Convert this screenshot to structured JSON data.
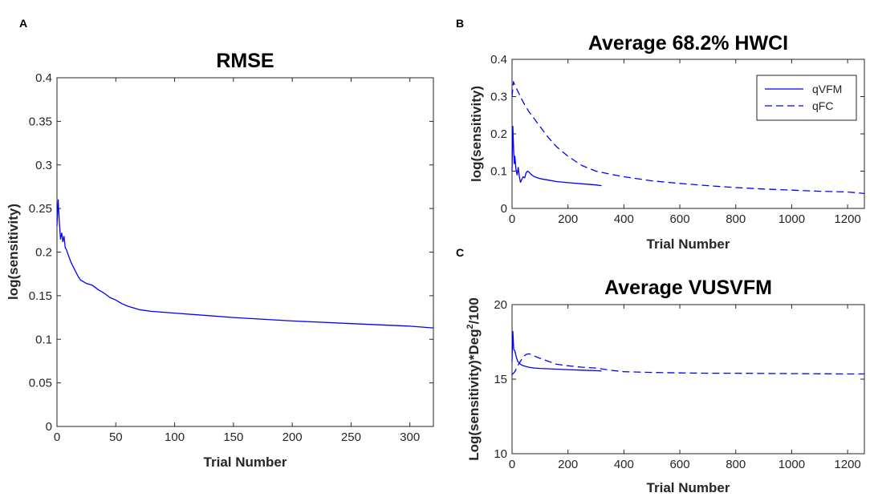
{
  "colors": {
    "series": "#0000ff",
    "axis": "#262626",
    "background": "#ffffff"
  },
  "chart_data": [
    {
      "panel": "A",
      "type": "line",
      "title": "RMSE",
      "xlabel": "Trial Number",
      "ylabel": "log(sensitivity)",
      "xlim": [
        0,
        320
      ],
      "ylim": [
        0,
        0.4
      ],
      "xticks": [
        0,
        50,
        100,
        150,
        200,
        250,
        300
      ],
      "yticks": [
        0,
        0.05,
        0.1,
        0.15,
        0.2,
        0.25,
        0.3,
        0.35,
        0.4
      ],
      "ytick_labels": [
        "0",
        "0.05",
        "0.1",
        "0.15",
        "0.2",
        "0.25",
        "0.3",
        "0.35",
        "0.4"
      ],
      "series": [
        {
          "name": "RMSE",
          "style": "solid",
          "x": [
            0,
            1,
            2,
            3,
            4,
            5,
            6,
            7,
            8,
            10,
            12,
            15,
            18,
            20,
            25,
            30,
            35,
            40,
            45,
            50,
            55,
            60,
            70,
            80,
            100,
            120,
            150,
            200,
            250,
            300,
            320
          ],
          "y": [
            0.23,
            0.26,
            0.235,
            0.215,
            0.222,
            0.212,
            0.218,
            0.205,
            0.203,
            0.195,
            0.188,
            0.18,
            0.172,
            0.168,
            0.164,
            0.162,
            0.157,
            0.153,
            0.148,
            0.145,
            0.141,
            0.138,
            0.134,
            0.132,
            0.13,
            0.128,
            0.125,
            0.121,
            0.118,
            0.115,
            0.113
          ]
        }
      ]
    },
    {
      "panel": "B",
      "type": "line",
      "title": "Average 68.2% HWCI",
      "xlabel": "Trial Number",
      "ylabel": "log(sensitivity)",
      "xlim": [
        0,
        1260
      ],
      "ylim": [
        0,
        0.4
      ],
      "xticks": [
        0,
        200,
        400,
        600,
        800,
        1000,
        1200
      ],
      "yticks": [
        0,
        0.1,
        0.2,
        0.3,
        0.4
      ],
      "ytick_labels": [
        "0",
        "0.1",
        "0.2",
        "0.3",
        "0.4"
      ],
      "legend": {
        "position": "top-right",
        "entries": [
          "qVFM",
          "qFC"
        ]
      },
      "series": [
        {
          "name": "qVFM",
          "style": "solid",
          "x": [
            0,
            3,
            6,
            8,
            10,
            14,
            18,
            22,
            26,
            30,
            35,
            40,
            45,
            50,
            55,
            60,
            65,
            70,
            80,
            100,
            130,
            160,
            200,
            250,
            300,
            320
          ],
          "y": [
            0.1,
            0.22,
            0.15,
            0.12,
            0.14,
            0.105,
            0.09,
            0.11,
            0.085,
            0.07,
            0.078,
            0.085,
            0.082,
            0.095,
            0.1,
            0.098,
            0.094,
            0.09,
            0.085,
            0.08,
            0.076,
            0.072,
            0.069,
            0.066,
            0.063,
            0.061
          ]
        },
        {
          "name": "qFC",
          "style": "dashed",
          "x": [
            0,
            5,
            10,
            20,
            30,
            40,
            60,
            80,
            100,
            130,
            160,
            200,
            250,
            300,
            350,
            400,
            500,
            600,
            700,
            800,
            900,
            1000,
            1100,
            1200,
            1260
          ],
          "y": [
            0.3,
            0.34,
            0.33,
            0.315,
            0.3,
            0.285,
            0.26,
            0.24,
            0.22,
            0.19,
            0.165,
            0.14,
            0.115,
            0.1,
            0.092,
            0.085,
            0.074,
            0.067,
            0.061,
            0.056,
            0.052,
            0.049,
            0.046,
            0.044,
            0.04
          ]
        }
      ]
    },
    {
      "panel": "C",
      "type": "line",
      "title": "Average VUSVFM",
      "xlabel": "Trial Number",
      "ylabel_main": "Log(sensitivity)*Deg",
      "ylabel_sup": "2",
      "ylabel_end": "/100",
      "xlim": [
        0,
        1260
      ],
      "ylim": [
        10,
        20
      ],
      "xticks": [
        0,
        200,
        400,
        600,
        800,
        1000,
        1200
      ],
      "yticks": [
        10,
        15,
        20
      ],
      "ytick_labels": [
        "10",
        "15",
        "20"
      ],
      "series": [
        {
          "name": "qVFM",
          "style": "solid",
          "x": [
            0,
            3,
            6,
            10,
            15,
            20,
            30,
            40,
            60,
            80,
            100,
            150,
            200,
            250,
            300,
            320
          ],
          "y": [
            16.2,
            18.2,
            17.0,
            16.9,
            16.5,
            16.2,
            16.0,
            15.9,
            15.8,
            15.75,
            15.72,
            15.68,
            15.64,
            15.6,
            15.57,
            15.55
          ]
        },
        {
          "name": "qFC",
          "style": "dashed",
          "x": [
            0,
            10,
            20,
            30,
            40,
            50,
            60,
            70,
            80,
            100,
            130,
            160,
            200,
            250,
            300,
            350,
            400,
            500,
            600,
            700,
            800,
            900,
            1000,
            1100,
            1200,
            1260
          ],
          "y": [
            15.3,
            15.5,
            15.9,
            16.2,
            16.5,
            16.65,
            16.7,
            16.65,
            16.55,
            16.4,
            16.2,
            16.0,
            15.9,
            15.8,
            15.75,
            15.6,
            15.5,
            15.45,
            15.42,
            15.4,
            15.4,
            15.38,
            15.37,
            15.36,
            15.35,
            15.35
          ]
        }
      ]
    }
  ]
}
